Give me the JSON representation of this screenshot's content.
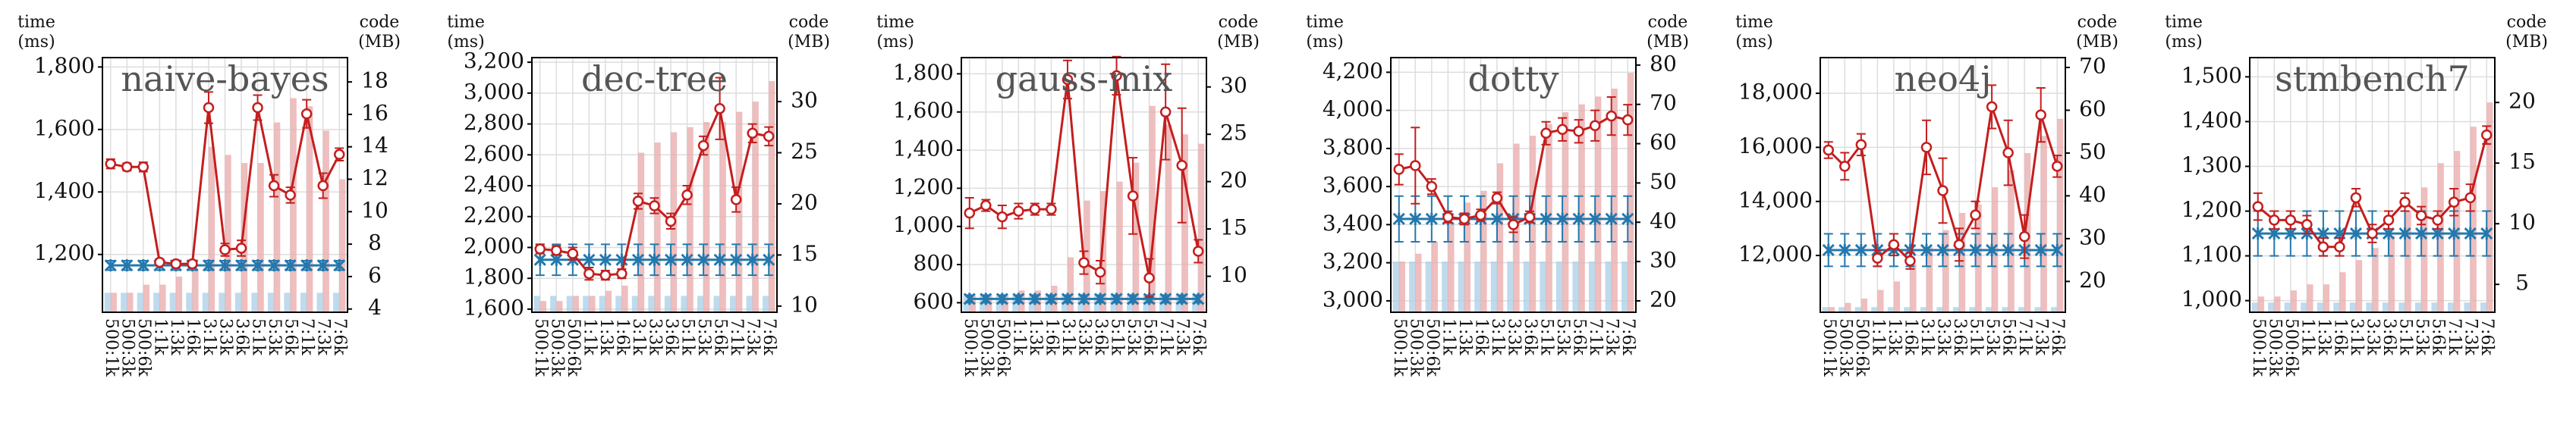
{
  "chart_data": [
    {
      "type": "line",
      "title": "naive-bayes",
      "ylabel": [
        "time",
        "(ms)"
      ],
      "y2label": [
        "code",
        "(MB)"
      ],
      "categories": [
        "500:1k",
        "500:3k",
        "500:6k",
        "1:1k",
        "1:3k",
        "1:6k",
        "3:1k",
        "3:3k",
        "3:6k",
        "5:1k",
        "5:3k",
        "5:6k",
        "7:1k",
        "7:3k",
        "7:6k"
      ],
      "series": [
        {
          "type": "bar",
          "axis": "y2",
          "color": "#a9cde6",
          "values": [
            5,
            5,
            5,
            5,
            5,
            5,
            5,
            5,
            5,
            5,
            5,
            5,
            5,
            5,
            5
          ]
        },
        {
          "type": "bar",
          "axis": "y2",
          "color": "#eaa8a8",
          "values": [
            5,
            5,
            5.5,
            5.5,
            6,
            6.5,
            14,
            13.5,
            13,
            13,
            15.5,
            17,
            16.5,
            15,
            12
          ]
        },
        {
          "type": "line",
          "marker": "x",
          "color": "#2478ad",
          "values": [
            1165,
            1165,
            1165,
            1165,
            1165,
            1165,
            1165,
            1165,
            1165,
            1165,
            1165,
            1165,
            1165,
            1165,
            1165
          ],
          "errors": [
            15,
            15,
            15,
            15,
            15,
            15,
            15,
            15,
            15,
            15,
            15,
            15,
            15,
            15,
            15
          ]
        },
        {
          "type": "line",
          "marker": "o",
          "color": "#c41e1e",
          "values": [
            1490,
            1480,
            1480,
            1175,
            1170,
            1170,
            1670,
            1215,
            1220,
            1670,
            1420,
            1390,
            1650,
            1420,
            1520
          ],
          "errors": [
            15,
            12,
            15,
            10,
            10,
            10,
            50,
            20,
            25,
            40,
            35,
            25,
            45,
            40,
            20
          ]
        }
      ],
      "ylim": [
        1015,
        1830
      ],
      "yticks": [
        {
          "value": 1200,
          "label": "1,200"
        },
        {
          "value": 1400,
          "label": "1,400"
        },
        {
          "value": 1600,
          "label": "1,600"
        },
        {
          "value": 1800,
          "label": "1,800"
        }
      ],
      "y2lim": [
        3.8,
        19.5
      ],
      "y2ticks": [
        4,
        6,
        8,
        10,
        12,
        14,
        16,
        18
      ],
      "grid": true
    },
    {
      "type": "line",
      "title": "dec-tree",
      "ylabel": [
        "time",
        "(ms)"
      ],
      "y2label": [
        "code",
        "(MB)"
      ],
      "categories": [
        "500:1k",
        "500:3k",
        "500:6k",
        "1:1k",
        "1:3k",
        "1:6k",
        "3:1k",
        "3:3k",
        "3:6k",
        "5:1k",
        "5:3k",
        "5:6k",
        "7:1k",
        "7:3k",
        "7:6k"
      ],
      "series": [
        {
          "type": "bar",
          "axis": "y2",
          "color": "#a9cde6",
          "values": [
            11,
            11,
            11,
            11,
            11,
            11,
            11,
            11,
            11,
            11,
            11,
            11,
            11,
            11,
            11
          ]
        },
        {
          "type": "bar",
          "axis": "y2",
          "color": "#eaa8a8",
          "values": [
            10.5,
            10.5,
            11,
            11,
            11.5,
            12,
            25,
            26,
            27,
            27.5,
            28,
            28,
            29,
            30,
            32
          ]
        },
        {
          "type": "line",
          "marker": "x",
          "color": "#2478ad",
          "values": [
            1920,
            1920,
            1920,
            1920,
            1920,
            1920,
            1920,
            1920,
            1920,
            1920,
            1920,
            1920,
            1920,
            1920,
            1920
          ],
          "errors": [
            100,
            100,
            100,
            100,
            100,
            100,
            100,
            100,
            100,
            100,
            100,
            100,
            100,
            100,
            100
          ]
        },
        {
          "type": "line",
          "marker": "o",
          "color": "#c41e1e",
          "values": [
            1990,
            1980,
            1960,
            1830,
            1820,
            1830,
            2300,
            2270,
            2170,
            2340,
            2660,
            2900,
            2310,
            2740,
            2720
          ],
          "errors": [
            30,
            30,
            40,
            40,
            30,
            30,
            50,
            50,
            50,
            60,
            60,
            200,
            80,
            60,
            60
          ]
        }
      ],
      "ylim": [
        1580,
        3230
      ],
      "yticks": [
        {
          "value": 1600,
          "label": "1,600"
        },
        {
          "value": 1800,
          "label": "1,800"
        },
        {
          "value": 2000,
          "label": "2,000"
        },
        {
          "value": 2200,
          "label": "2,200"
        },
        {
          "value": 2400,
          "label": "2,400"
        },
        {
          "value": 2600,
          "label": "2,600"
        },
        {
          "value": 2800,
          "label": "2,800"
        },
        {
          "value": 3000,
          "label": "3,000"
        },
        {
          "value": 3200,
          "label": "3,200"
        }
      ],
      "y2lim": [
        9.4,
        34.3
      ],
      "y2ticks": [
        10,
        15,
        20,
        25,
        30
      ],
      "grid": true
    },
    {
      "type": "line",
      "title": "gauss-mix",
      "ylabel": [
        "time",
        "(ms)"
      ],
      "y2label": [
        "code",
        "(MB)"
      ],
      "categories": [
        "500:1k",
        "500:3k",
        "500:6k",
        "1:1k",
        "1:3k",
        "1:6k",
        "3:1k",
        "3:3k",
        "3:6k",
        "5:1k",
        "5:3k",
        "5:6k",
        "7:1k",
        "7:3k",
        "7:6k"
      ],
      "series": [
        {
          "type": "bar",
          "axis": "y2",
          "color": "#a9cde6",
          "values": [
            8,
            8,
            8,
            8,
            8,
            8,
            8,
            8,
            8,
            8,
            8,
            8,
            8,
            8,
            8
          ]
        },
        {
          "type": "bar",
          "axis": "y2",
          "color": "#eaa8a8",
          "values": [
            8,
            8,
            8,
            8.5,
            8.5,
            9,
            12,
            18,
            19,
            20,
            22,
            28,
            26,
            25,
            24
          ]
        },
        {
          "type": "line",
          "marker": "x",
          "color": "#2478ad",
          "values": [
            620,
            620,
            620,
            620,
            620,
            620,
            620,
            620,
            620,
            620,
            620,
            620,
            620,
            620,
            620
          ],
          "errors": [
            20,
            20,
            20,
            20,
            20,
            20,
            20,
            20,
            20,
            20,
            20,
            20,
            20,
            20,
            20
          ]
        },
        {
          "type": "line",
          "marker": "o",
          "color": "#c41e1e",
          "values": [
            1070,
            1110,
            1050,
            1080,
            1090,
            1090,
            1770,
            810,
            760,
            1790,
            1160,
            730,
            1600,
            1320,
            870
          ],
          "errors": [
            80,
            30,
            60,
            40,
            30,
            30,
            100,
            60,
            60,
            100,
            200,
            100,
            250,
            300,
            60
          ]
        }
      ],
      "ylim": [
        550,
        1885
      ],
      "yticks": [
        600,
        800,
        {
          "value": 1000,
          "label": "1,000"
        },
        {
          "value": 1200,
          "label": "1,200"
        },
        {
          "value": 1400,
          "label": "1,400"
        },
        {
          "value": 1600,
          "label": "1,600"
        },
        {
          "value": 1800,
          "label": "1,800"
        }
      ],
      "y2lim": [
        6.2,
        33.1
      ],
      "y2ticks": [
        10,
        15,
        20,
        25,
        30
      ],
      "grid": true
    },
    {
      "type": "line",
      "title": "dotty",
      "ylabel": [
        "time",
        "(ms)"
      ],
      "y2label": [
        "code",
        "(MB)"
      ],
      "categories": [
        "500:1k",
        "500:3k",
        "500:6k",
        "1:1k",
        "1:3k",
        "1:6k",
        "3:1k",
        "3:3k",
        "3:6k",
        "5:1k",
        "5:3k",
        "5:6k",
        "7:1k",
        "7:3k",
        "7:6k"
      ],
      "series": [
        {
          "type": "bar",
          "axis": "y2",
          "color": "#a9cde6",
          "values": [
            30,
            30,
            30,
            30,
            30,
            30,
            30,
            30,
            30,
            30,
            30,
            30,
            30,
            30,
            30
          ]
        },
        {
          "type": "bar",
          "axis": "y2",
          "color": "#eaa8a8",
          "values": [
            30,
            32,
            35,
            40,
            45,
            48,
            55,
            60,
            62,
            65,
            68,
            70,
            72,
            74,
            78
          ]
        },
        {
          "type": "line",
          "marker": "x",
          "color": "#2478ad",
          "values": [
            3430,
            3430,
            3430,
            3430,
            3430,
            3430,
            3430,
            3430,
            3430,
            3430,
            3430,
            3430,
            3430,
            3430,
            3430
          ],
          "errors": [
            120,
            120,
            120,
            120,
            120,
            120,
            120,
            120,
            120,
            120,
            120,
            120,
            120,
            120,
            120
          ]
        },
        {
          "type": "line",
          "marker": "o",
          "color": "#c41e1e",
          "values": [
            3690,
            3710,
            3600,
            3440,
            3430,
            3450,
            3540,
            3400,
            3440,
            3880,
            3900,
            3890,
            3920,
            3970,
            3950
          ],
          "errors": [
            80,
            200,
            40,
            30,
            30,
            30,
            30,
            40,
            30,
            60,
            60,
            60,
            80,
            100,
            80
          ]
        }
      ],
      "ylim": [
        2940,
        4277
      ],
      "yticks": [
        {
          "value": 3000,
          "label": "3,000"
        },
        {
          "value": 3200,
          "label": "3,200"
        },
        {
          "value": 3400,
          "label": "3,400"
        },
        {
          "value": 3600,
          "label": "3,600"
        },
        {
          "value": 3800,
          "label": "3,800"
        },
        {
          "value": 4000,
          "label": "4,000"
        },
        {
          "value": 4200,
          "label": "4,200"
        }
      ],
      "y2lim": [
        17.1,
        81.9
      ],
      "y2ticks": [
        20,
        30,
        40,
        50,
        60,
        70,
        80
      ],
      "grid": true
    },
    {
      "type": "line",
      "title": "neo4j",
      "ylabel": [
        "time",
        "(ms)"
      ],
      "y2label": [
        "code",
        "(MB)"
      ],
      "categories": [
        "500:1k",
        "500:3k",
        "500:6k",
        "1:1k",
        "1:3k",
        "1:6k",
        "3:1k",
        "3:3k",
        "3:6k",
        "5:1k",
        "5:3k",
        "5:6k",
        "7:1k",
        "7:3k",
        "7:6k"
      ],
      "series": [
        {
          "type": "bar",
          "axis": "y2",
          "color": "#a9cde6",
          "values": [
            14,
            14,
            14,
            14,
            14,
            14,
            14,
            14,
            14,
            14,
            14,
            14,
            14,
            14,
            14
          ]
        },
        {
          "type": "bar",
          "axis": "y2",
          "color": "#eaa8a8",
          "values": [
            14,
            15,
            16,
            18,
            20,
            24,
            28,
            32,
            36,
            38,
            42,
            46,
            50,
            54,
            58
          ]
        },
        {
          "type": "line",
          "marker": "x",
          "color": "#2478ad",
          "values": [
            12200,
            12200,
            12200,
            12200,
            12200,
            12200,
            12200,
            12200,
            12200,
            12200,
            12200,
            12200,
            12200,
            12200,
            12200
          ],
          "errors": [
            600,
            600,
            600,
            600,
            600,
            600,
            600,
            600,
            600,
            600,
            600,
            600,
            600,
            600,
            600
          ]
        },
        {
          "type": "line",
          "marker": "o",
          "color": "#c41e1e",
          "values": [
            15900,
            15300,
            16100,
            11900,
            12400,
            11800,
            16000,
            14400,
            12400,
            13500,
            17500,
            15800,
            12700,
            17200,
            15300
          ],
          "errors": [
            300,
            500,
            400,
            300,
            400,
            300,
            1000,
            1200,
            600,
            500,
            800,
            1200,
            800,
            1000,
            400
          ]
        }
      ],
      "ylim": [
        9900,
        19320
      ],
      "yticks": [
        {
          "value": 12000,
          "label": "12,000"
        },
        {
          "value": 14000,
          "label": "14,000"
        },
        {
          "value": 16000,
          "label": "16,000"
        },
        {
          "value": 18000,
          "label": "18,000"
        }
      ],
      "y2lim": [
        12.8,
        72.3
      ],
      "y2ticks": [
        20,
        30,
        40,
        50,
        60,
        70
      ],
      "grid": true
    },
    {
      "type": "line",
      "title": "stmbench7",
      "ylabel": [
        "time",
        "(ms)"
      ],
      "y2label": [
        "code",
        "(MB)"
      ],
      "categories": [
        "500:1k",
        "500:3k",
        "500:6k",
        "1:1k",
        "1:3k",
        "1:6k",
        "3:1k",
        "3:3k",
        "3:6k",
        "5:1k",
        "5:3k",
        "5:6k",
        "7:1k",
        "7:3k",
        "7:6k"
      ],
      "series": [
        {
          "type": "bar",
          "axis": "y2",
          "color": "#a9cde6",
          "values": [
            3.5,
            3.5,
            3.5,
            3.5,
            3.5,
            3.5,
            3.5,
            3.5,
            3.5,
            3.5,
            3.5,
            3.5,
            3.5,
            3.5,
            3.5
          ]
        },
        {
          "type": "bar",
          "axis": "y2",
          "color": "#eaa8a8",
          "values": [
            4,
            4,
            4.5,
            5,
            5,
            6,
            7,
            8,
            9,
            11,
            13,
            15,
            16,
            18,
            20
          ]
        },
        {
          "type": "line",
          "marker": "x",
          "color": "#2478ad",
          "values": [
            1150,
            1150,
            1150,
            1150,
            1150,
            1150,
            1150,
            1150,
            1150,
            1150,
            1150,
            1150,
            1150,
            1150,
            1150
          ],
          "errors": [
            50,
            50,
            50,
            50,
            50,
            50,
            50,
            50,
            50,
            50,
            50,
            50,
            50,
            50,
            50
          ]
        },
        {
          "type": "line",
          "marker": "o",
          "color": "#c41e1e",
          "values": [
            1210,
            1180,
            1180,
            1170,
            1120,
            1120,
            1230,
            1150,
            1180,
            1220,
            1190,
            1180,
            1220,
            1230,
            1370
          ],
          "errors": [
            30,
            20,
            20,
            20,
            20,
            20,
            20,
            20,
            20,
            20,
            20,
            20,
            30,
            30,
            20
          ]
        }
      ],
      "ylim": [
        974,
        1543
      ],
      "yticks": [
        {
          "value": 1000,
          "label": "1,000"
        },
        {
          "value": 1100,
          "label": "1,100"
        },
        {
          "value": 1200,
          "label": "1,200"
        },
        {
          "value": 1300,
          "label": "1,300"
        },
        {
          "value": 1400,
          "label": "1,400"
        },
        {
          "value": 1500,
          "label": "1,500"
        }
      ],
      "y2lim": [
        2.7,
        23.7
      ],
      "y2ticks": [
        5,
        10,
        15,
        20
      ],
      "grid": true
    }
  ]
}
